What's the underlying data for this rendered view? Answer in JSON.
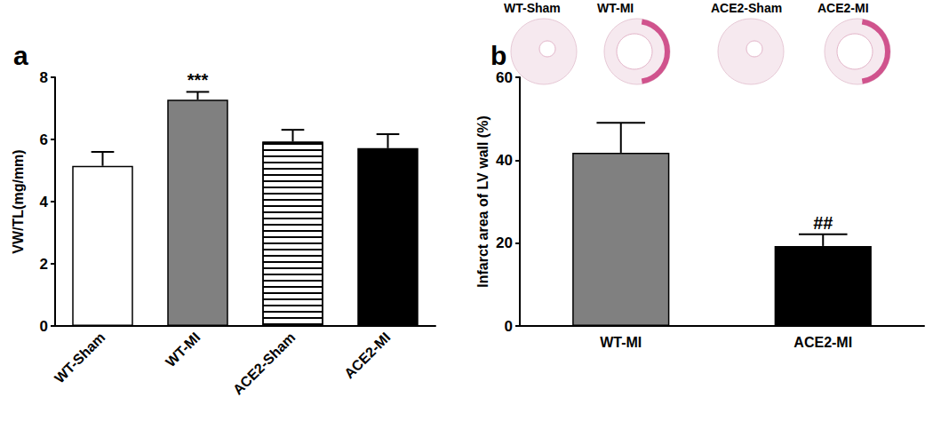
{
  "chart_data": [
    {
      "type": "bar",
      "title": "a",
      "y_label": "VW/TL(mg/mm)",
      "categories": [
        "WT-Sham",
        "WT-MI",
        "ACE2-Sham",
        "ACE2-MI"
      ],
      "values": [
        5.15,
        7.28,
        5.93,
        5.72
      ],
      "errors": [
        0.45,
        0.25,
        0.38,
        0.45
      ],
      "colors": [
        "#ffffff",
        "#808080",
        "#ffffff",
        "#000000"
      ],
      "ylim": [
        0,
        8
      ],
      "yticks": [
        0,
        2,
        4,
        6,
        8
      ],
      "grid": false,
      "annotations": [
        {
          "text": "***",
          "category": "WT-MI"
        }
      ]
    },
    {
      "type": "bar",
      "title": "b",
      "y_label": "Infarct area of LV wall (%)",
      "categories": [
        "WT-MI",
        "ACE2-MI"
      ],
      "values": [
        41.8,
        19.3
      ],
      "errors": [
        7.2,
        2.8
      ],
      "colors": [
        "#808080",
        "#000000"
      ],
      "ylim": [
        0,
        60
      ],
      "yticks": [
        0,
        20,
        40,
        60
      ],
      "grid": false,
      "annotations": [
        {
          "text": "##",
          "category": "ACE2-MI"
        }
      ],
      "image_labels": [
        "WT-Sham",
        "WT-MI",
        "ACE2-Sham",
        "ACE2-MI"
      ]
    }
  ]
}
